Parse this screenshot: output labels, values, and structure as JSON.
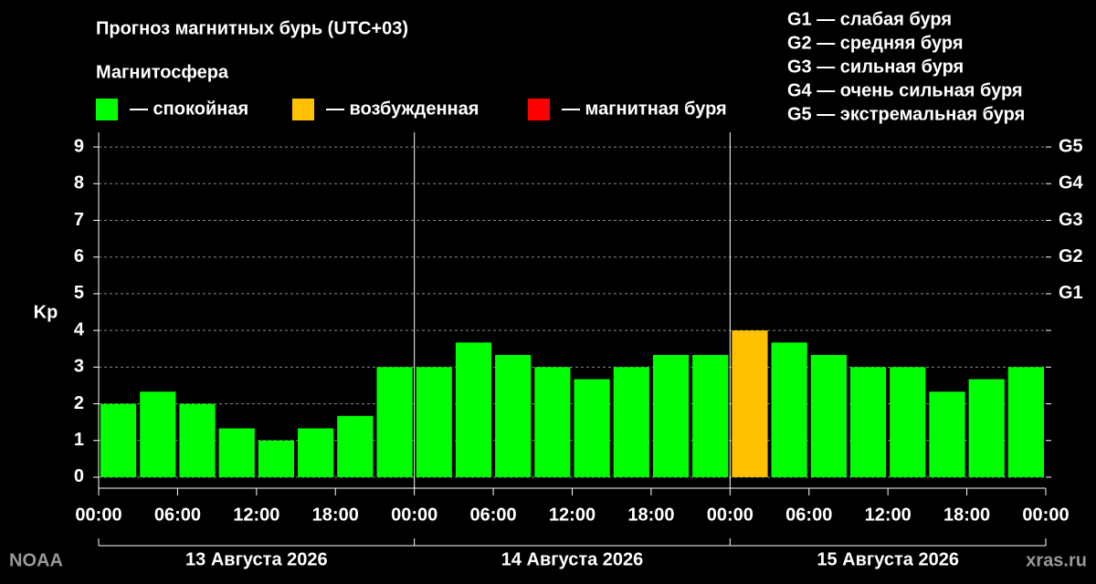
{
  "chart_data": {
    "type": "bar",
    "title": "Прогноз магнитных бурь (UTC+03)",
    "legend_title": "Магнитосфера",
    "legend": [
      {
        "label": "— спокойная",
        "color": "#00ff00"
      },
      {
        "label": "— возбужденная",
        "color": "#ffc000"
      },
      {
        "label": "— магнитная буря",
        "color": "#ff0000"
      }
    ],
    "scale_notes": [
      "G1 — слабая буря",
      "G2 — средняя буря",
      "G3 — сильная буря",
      "G4 — очень сильная буря",
      "G5 — экстремальная буря"
    ],
    "y_label": "Kp",
    "categories": [
      null,
      null,
      null,
      null,
      null,
      null,
      null,
      null,
      null,
      null,
      null,
      null,
      null,
      null,
      null,
      null,
      null,
      null,
      null,
      null,
      null,
      null,
      null,
      null
    ],
    "values": [
      2,
      2.33,
      2,
      1.33,
      1,
      1.33,
      1.67,
      3,
      3,
      3.67,
      3.33,
      3,
      2.67,
      3,
      3.33,
      3.33,
      4,
      3.67,
      3.33,
      3,
      3,
      2.33,
      2.67,
      3
    ],
    "colors": [
      "#00ff00",
      "#00ff00",
      "#00ff00",
      "#00ff00",
      "#00ff00",
      "#00ff00",
      "#00ff00",
      "#00ff00",
      "#00ff00",
      "#00ff00",
      "#00ff00",
      "#00ff00",
      "#00ff00",
      "#00ff00",
      "#00ff00",
      "#00ff00",
      "#ffc000",
      "#00ff00",
      "#00ff00",
      "#00ff00",
      "#00ff00",
      "#00ff00",
      "#00ff00",
      "#00ff00"
    ],
    "ylim": [
      -0.3,
      9.4
    ],
    "yticks": [
      0,
      1,
      2,
      3,
      4,
      5,
      6,
      7,
      8,
      9
    ],
    "y2lim": [
      -0.3,
      9.4
    ],
    "y2ticks": [
      {
        "value": 5,
        "label": "G1"
      },
      {
        "value": 6,
        "label": "G2"
      },
      {
        "value": 7,
        "label": "G3"
      },
      {
        "value": 8,
        "label": "G4"
      },
      {
        "value": 9,
        "label": "G5"
      }
    ],
    "xlim": [
      0,
      72
    ],
    "xticks": [
      {
        "value": 0,
        "label": "00:00"
      },
      {
        "value": 6,
        "label": "06:00"
      },
      {
        "value": 12,
        "label": "12:00"
      },
      {
        "value": 18,
        "label": "18:00"
      },
      {
        "value": 24,
        "label": "00:00"
      },
      {
        "value": 30,
        "label": "06:00"
      },
      {
        "value": 36,
        "label": "12:00"
      },
      {
        "value": 42,
        "label": "18:00"
      },
      {
        "value": 48,
        "label": "00:00"
      },
      {
        "value": 54,
        "label": "06:00"
      },
      {
        "value": 60,
        "label": "12:00"
      },
      {
        "value": 66,
        "label": "18:00"
      },
      {
        "value": 72,
        "label": "00:00"
      }
    ],
    "days": [
      "13 Августа 2026",
      "14 Августа 2026",
      "15 Августа 2026"
    ],
    "grid": true,
    "source": "NOAA",
    "site": "xras.ru"
  }
}
